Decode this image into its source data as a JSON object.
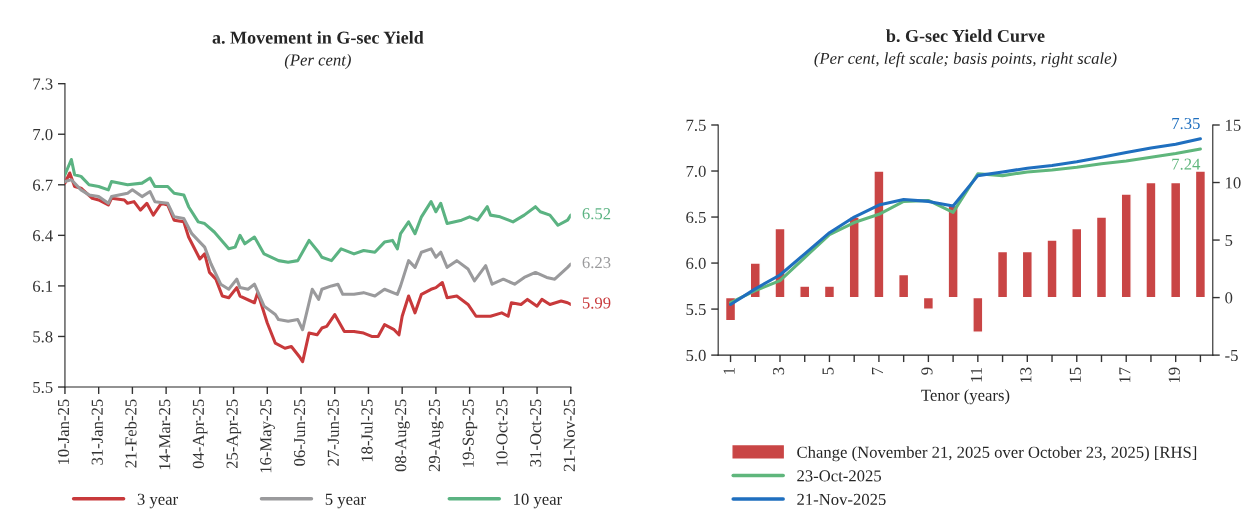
{
  "chart_data": [
    {
      "type": "line",
      "title": "a. Movement in G-sec Yield",
      "subtitle": "(Per cent)",
      "xlim": [
        "2025-01-10",
        "2025-11-21"
      ],
      "xticks": [
        {
          "value": "2025-01-10",
          "label": "10-Jan-25"
        },
        {
          "value": "2025-01-31",
          "label": "31-Jan-25"
        },
        {
          "value": "2025-02-21",
          "label": "21-Feb-25"
        },
        {
          "value": "2025-03-14",
          "label": "14-Mar-25"
        },
        {
          "value": "2025-04-04",
          "label": "04-Apr-25"
        },
        {
          "value": "2025-04-25",
          "label": "25-Apr-25"
        },
        {
          "value": "2025-05-16",
          "label": "16-May-25"
        },
        {
          "value": "2025-06-06",
          "label": "06-Jun-25"
        },
        {
          "value": "2025-06-27",
          "label": "27-Jun-25"
        },
        {
          "value": "2025-07-18",
          "label": "18-Jul-25"
        },
        {
          "value": "2025-08-08",
          "label": "08-Aug-25"
        },
        {
          "value": "2025-08-29",
          "label": "29-Aug-25"
        },
        {
          "value": "2025-09-19",
          "label": "19-Sep-25"
        },
        {
          "value": "2025-10-10",
          "label": "10-Oct-25"
        },
        {
          "value": "2025-10-31",
          "label": "31-Oct-25"
        },
        {
          "value": "2025-11-21",
          "label": "21-Nov-25"
        }
      ],
      "ylim": [
        5.5,
        7.3
      ],
      "yticks": [
        {
          "value": 5.5,
          "label": "5.5"
        },
        {
          "value": 5.8,
          "label": "5.8"
        },
        {
          "value": 6.1,
          "label": "6.1"
        },
        {
          "value": 6.4,
          "label": "6.4"
        },
        {
          "value": 6.7,
          "label": "6.7"
        },
        {
          "value": 7.0,
          "label": "7.0"
        },
        {
          "value": 7.3,
          "label": "7.3"
        }
      ],
      "grid": false,
      "legend": "bottom",
      "marker": "none",
      "line_style": "solid",
      "series": [
        {
          "name": "3 year",
          "color": "#c8393b",
          "x": [
            "2025-01-10",
            "2025-01-13",
            "2025-01-16",
            "2025-01-20",
            "2025-01-27",
            "2025-01-31",
            "2025-02-06",
            "2025-02-08",
            "2025-02-16",
            "2025-02-18",
            "2025-02-22",
            "2025-02-26",
            "2025-03-02",
            "2025-03-06",
            "2025-03-11",
            "2025-03-15",
            "2025-03-19",
            "2025-03-25",
            "2025-03-28",
            "2025-04-04",
            "2025-04-07",
            "2025-04-10",
            "2025-04-14",
            "2025-04-18",
            "2025-04-22",
            "2025-04-27",
            "2025-04-29",
            "2025-05-08",
            "2025-05-10",
            "2025-05-16",
            "2025-05-21",
            "2025-05-27",
            "2025-05-31",
            "2025-06-05",
            "2025-06-07",
            "2025-06-11",
            "2025-06-16",
            "2025-06-19",
            "2025-06-22",
            "2025-06-27",
            "2025-07-03",
            "2025-07-09",
            "2025-07-15",
            "2025-07-20",
            "2025-07-24",
            "2025-07-28",
            "2025-08-03",
            "2025-08-06",
            "2025-08-08",
            "2025-08-12",
            "2025-08-16",
            "2025-08-20",
            "2025-08-26",
            "2025-08-29",
            "2025-09-02",
            "2025-09-05",
            "2025-09-11",
            "2025-09-18",
            "2025-09-23",
            "2025-10-02",
            "2025-10-09",
            "2025-10-13",
            "2025-10-15",
            "2025-10-21",
            "2025-10-25",
            "2025-10-31",
            "2025-11-03",
            "2025-11-08",
            "2025-11-15",
            "2025-11-19",
            "2025-11-21"
          ],
          "values": [
            6.71,
            6.77,
            6.69,
            6.68,
            6.62,
            6.61,
            6.58,
            6.62,
            6.61,
            6.59,
            6.6,
            6.55,
            6.59,
            6.52,
            6.59,
            6.58,
            6.49,
            6.48,
            6.39,
            6.26,
            6.29,
            6.18,
            6.14,
            6.04,
            6.03,
            6.09,
            6.04,
            6.0,
            6.06,
            5.88,
            5.76,
            5.73,
            5.74,
            5.68,
            5.65,
            5.82,
            5.81,
            5.85,
            5.86,
            5.93,
            5.83,
            5.83,
            5.82,
            5.8,
            5.8,
            5.87,
            5.84,
            5.81,
            5.92,
            6.04,
            5.94,
            6.05,
            6.08,
            6.09,
            6.12,
            6.03,
            6.04,
            5.99,
            5.92,
            5.92,
            5.94,
            5.92,
            6.0,
            5.99,
            6.02,
            5.98,
            6.02,
            5.99,
            6.01,
            6.0,
            5.99
          ],
          "value_labels": [
            null,
            null,
            null,
            null,
            null,
            null,
            null,
            null,
            null,
            null,
            null,
            null,
            null,
            null,
            null,
            null,
            null,
            null,
            null,
            null,
            null,
            null,
            null,
            null,
            null,
            null,
            null,
            null,
            null,
            null,
            null,
            null,
            null,
            null,
            null,
            null,
            null,
            null,
            null,
            null,
            null,
            null,
            null,
            null,
            null,
            null,
            null,
            null,
            null,
            null,
            null,
            null,
            null,
            null,
            null,
            null,
            null,
            null,
            null,
            null,
            null,
            null,
            null,
            null,
            null,
            null,
            null,
            null,
            null,
            null,
            "5.99"
          ]
        },
        {
          "name": "5 year",
          "color": "#9a9a9c",
          "x": [
            "2025-01-10",
            "2025-01-14",
            "2025-01-20",
            "2025-01-25",
            "2025-01-31",
            "2025-02-06",
            "2025-02-08",
            "2025-02-18",
            "2025-02-21",
            "2025-02-27",
            "2025-03-04",
            "2025-03-07",
            "2025-03-15",
            "2025-03-19",
            "2025-03-25",
            "2025-03-30",
            "2025-04-04",
            "2025-04-07",
            "2025-04-11",
            "2025-04-17",
            "2025-04-22",
            "2025-04-27",
            "2025-04-29",
            "2025-05-04",
            "2025-05-08",
            "2025-05-14",
            "2025-05-21",
            "2025-05-23",
            "2025-05-29",
            "2025-06-04",
            "2025-06-07",
            "2025-06-11",
            "2025-06-13",
            "2025-06-17",
            "2025-06-19",
            "2025-06-25",
            "2025-06-29",
            "2025-07-02",
            "2025-07-09",
            "2025-07-15",
            "2025-07-22",
            "2025-07-28",
            "2025-08-05",
            "2025-08-07",
            "2025-08-12",
            "2025-08-16",
            "2025-08-20",
            "2025-08-26",
            "2025-08-29",
            "2025-09-01",
            "2025-09-05",
            "2025-09-11",
            "2025-09-18",
            "2025-09-22",
            "2025-09-29",
            "2025-10-03",
            "2025-10-10",
            "2025-10-17",
            "2025-10-23",
            "2025-10-30",
            "2025-11-06",
            "2025-11-11",
            "2025-11-19",
            "2025-11-21"
          ],
          "values": [
            6.72,
            6.73,
            6.67,
            6.64,
            6.63,
            6.59,
            6.63,
            6.65,
            6.67,
            6.63,
            6.66,
            6.6,
            6.59,
            6.51,
            6.5,
            6.41,
            6.36,
            6.33,
            6.23,
            6.11,
            6.08,
            6.14,
            6.09,
            6.08,
            6.11,
            5.98,
            5.93,
            5.9,
            5.89,
            5.9,
            5.84,
            6.0,
            6.08,
            6.02,
            6.08,
            6.1,
            6.11,
            6.05,
            6.05,
            6.06,
            6.04,
            6.08,
            6.05,
            6.1,
            6.25,
            6.21,
            6.3,
            6.32,
            6.27,
            6.3,
            6.21,
            6.25,
            6.2,
            6.13,
            6.22,
            6.11,
            6.14,
            6.11,
            6.15,
            6.18,
            6.15,
            6.14,
            6.21,
            6.23
          ],
          "value_labels": [
            null,
            null,
            null,
            null,
            null,
            null,
            null,
            null,
            null,
            null,
            null,
            null,
            null,
            null,
            null,
            null,
            null,
            null,
            null,
            null,
            null,
            null,
            null,
            null,
            null,
            null,
            null,
            null,
            null,
            null,
            null,
            null,
            null,
            null,
            null,
            null,
            null,
            null,
            null,
            null,
            null,
            null,
            null,
            null,
            null,
            null,
            null,
            null,
            null,
            null,
            null,
            null,
            null,
            null,
            null,
            null,
            null,
            null,
            null,
            null,
            null,
            null,
            null,
            "6.23"
          ]
        },
        {
          "name": "10 year",
          "color": "#5bb382",
          "x": [
            "2025-01-10",
            "2025-01-14",
            "2025-01-16",
            "2025-01-20",
            "2025-01-25",
            "2025-01-31",
            "2025-02-06",
            "2025-02-08",
            "2025-02-18",
            "2025-02-27",
            "2025-03-04",
            "2025-03-07",
            "2025-03-15",
            "2025-03-19",
            "2025-03-25",
            "2025-03-28",
            "2025-04-03",
            "2025-04-07",
            "2025-04-13",
            "2025-04-22",
            "2025-04-26",
            "2025-04-29",
            "2025-05-02",
            "2025-05-08",
            "2025-05-14",
            "2025-05-23",
            "2025-05-29",
            "2025-06-04",
            "2025-06-11",
            "2025-06-17",
            "2025-06-19",
            "2025-06-25",
            "2025-07-01",
            "2025-07-09",
            "2025-07-15",
            "2025-07-22",
            "2025-07-28",
            "2025-08-02",
            "2025-08-05",
            "2025-08-07",
            "2025-08-12",
            "2025-08-16",
            "2025-08-20",
            "2025-08-26",
            "2025-08-29",
            "2025-09-01",
            "2025-09-05",
            "2025-09-14",
            "2025-09-19",
            "2025-09-24",
            "2025-09-30",
            "2025-10-02",
            "2025-10-08",
            "2025-10-16",
            "2025-10-23",
            "2025-10-30",
            "2025-11-02",
            "2025-11-08",
            "2025-11-13",
            "2025-11-19",
            "2025-11-21"
          ],
          "values": [
            6.76,
            6.85,
            6.76,
            6.75,
            6.7,
            6.69,
            6.67,
            6.72,
            6.7,
            6.71,
            6.74,
            6.69,
            6.69,
            6.65,
            6.64,
            6.57,
            6.48,
            6.47,
            6.42,
            6.32,
            6.33,
            6.4,
            6.35,
            6.39,
            6.29,
            6.25,
            6.24,
            6.25,
            6.37,
            6.3,
            6.27,
            6.25,
            6.32,
            6.29,
            6.31,
            6.3,
            6.36,
            6.37,
            6.32,
            6.41,
            6.48,
            6.41,
            6.51,
            6.6,
            6.54,
            6.59,
            6.47,
            6.49,
            6.51,
            6.49,
            6.57,
            6.52,
            6.51,
            6.48,
            6.52,
            6.57,
            6.54,
            6.52,
            6.46,
            6.49,
            6.52
          ],
          "value_labels": [
            null,
            null,
            null,
            null,
            null,
            null,
            null,
            null,
            null,
            null,
            null,
            null,
            null,
            null,
            null,
            null,
            null,
            null,
            null,
            null,
            null,
            null,
            null,
            null,
            null,
            null,
            null,
            null,
            null,
            null,
            null,
            null,
            null,
            null,
            null,
            null,
            null,
            null,
            null,
            null,
            null,
            null,
            null,
            null,
            null,
            null,
            null,
            null,
            null,
            null,
            null,
            null,
            null,
            null,
            null,
            null,
            null,
            null,
            null,
            null,
            "6.52"
          ]
        }
      ]
    },
    {
      "type": "line",
      "title": "b. G-sec Yield Curve",
      "subtitle": "(Per cent, left scale; basis points, right scale)",
      "xlabel": "Tenor (years)",
      "categories": [
        "1",
        null,
        "3",
        null,
        "5",
        null,
        "7",
        null,
        "9",
        null,
        "11",
        null,
        "13",
        null,
        "15",
        null,
        "17",
        null,
        "19",
        null
      ],
      "ylim": [
        5.0,
        7.5
      ],
      "yticks": [
        {
          "value": 5.0,
          "label": "5.0"
        },
        {
          "value": 5.5,
          "label": "5.5"
        },
        {
          "value": 6.0,
          "label": "6.0"
        },
        {
          "value": 6.5,
          "label": "6.5"
        },
        {
          "value": 7.0,
          "label": "7.0"
        },
        {
          "value": 7.5,
          "label": "7.5"
        }
      ],
      "y2lim": [
        -5,
        15
      ],
      "y2ticks": [
        -5,
        0,
        5,
        10,
        15
      ],
      "grid": false,
      "legend": "bottom",
      "marker": "none",
      "line_style": "solid",
      "series": [
        {
          "name": "Change (November 21, 2025 over October 23, 2025) [RHS]",
          "type": "bar",
          "axis": "y2",
          "color": "#c94545",
          "values": [
            -2,
            3,
            6,
            1,
            1,
            7,
            11,
            2,
            -1,
            8,
            -3,
            4,
            4,
            5,
            6,
            7,
            9,
            10,
            10,
            11
          ]
        },
        {
          "name": "23-Oct-2025",
          "color": "#5fb67c",
          "values": [
            5.57,
            5.7,
            5.81,
            6.06,
            6.31,
            6.44,
            6.53,
            6.67,
            6.68,
            6.55,
            6.97,
            6.95,
            6.99,
            7.01,
            7.04,
            7.08,
            7.11,
            7.15,
            7.19,
            7.24
          ],
          "value_labels": [
            null,
            null,
            null,
            null,
            null,
            null,
            null,
            null,
            null,
            null,
            null,
            null,
            null,
            null,
            null,
            null,
            null,
            null,
            null,
            "7.24"
          ]
        },
        {
          "name": "21-Nov-2025",
          "color": "#1f6fbf",
          "values": [
            5.55,
            5.72,
            5.87,
            6.1,
            6.33,
            6.5,
            6.63,
            6.69,
            6.67,
            6.62,
            6.95,
            6.99,
            7.03,
            7.06,
            7.1,
            7.15,
            7.2,
            7.25,
            7.29,
            7.35
          ],
          "value_labels": [
            null,
            null,
            null,
            null,
            null,
            null,
            null,
            null,
            null,
            null,
            null,
            null,
            null,
            null,
            null,
            null,
            null,
            null,
            null,
            "7.35"
          ]
        }
      ]
    }
  ]
}
